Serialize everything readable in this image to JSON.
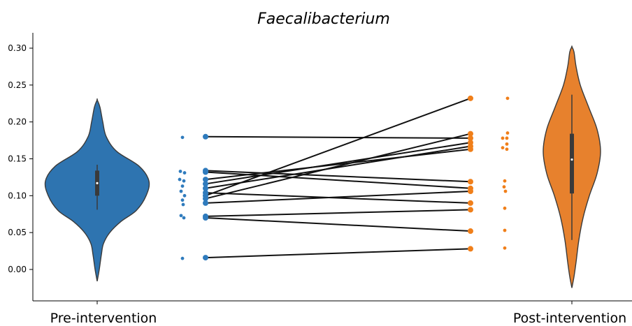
{
  "chart_data": {
    "type": "violin",
    "title": "Faecalibacterium",
    "xlabel": "",
    "ylabel": "",
    "categories": [
      "Pre-intervention",
      "Post-intervention"
    ],
    "ylim": [
      -0.04,
      0.32
    ],
    "yticks": [
      "0.00",
      "0.05",
      "0.10",
      "0.15",
      "0.20",
      "0.25",
      "0.30"
    ],
    "grid": false,
    "colors": {
      "pre": "#2e74b0",
      "post": "#e7812d",
      "pre_dots": "#2f7bbd",
      "post_dots": "#f07f1a",
      "lines": "#111111"
    },
    "violins": [
      {
        "name": "Pre-intervention",
        "min": -0.016,
        "max": 0.23,
        "q1": 0.1,
        "median": 0.117,
        "q3": 0.134,
        "whisker_low": 0.081,
        "whisker_high": 0.142
      },
      {
        "name": "Post-intervention",
        "min": -0.025,
        "max": 0.302,
        "q1": 0.103,
        "median": 0.149,
        "q3": 0.184,
        "whisker_low": 0.04,
        "whisker_high": 0.237
      }
    ],
    "paired_values": [
      {
        "pre": 0.18,
        "post": 0.178
      },
      {
        "pre": 0.134,
        "post": 0.119
      },
      {
        "pre": 0.132,
        "post": 0.11
      },
      {
        "pre": 0.122,
        "post": 0.163
      },
      {
        "pre": 0.116,
        "post": 0.172
      },
      {
        "pre": 0.11,
        "post": 0.167
      },
      {
        "pre": 0.104,
        "post": 0.09
      },
      {
        "pre": 0.1,
        "post": 0.232
      },
      {
        "pre": 0.096,
        "post": 0.184
      },
      {
        "pre": 0.09,
        "post": 0.106
      },
      {
        "pre": 0.072,
        "post": 0.081
      },
      {
        "pre": 0.07,
        "post": 0.052
      },
      {
        "pre": 0.016,
        "post": 0.028
      }
    ],
    "strip_pre": [
      0.179,
      0.133,
      0.131,
      0.122,
      0.12,
      0.113,
      0.106,
      0.1,
      0.094,
      0.088,
      0.073,
      0.07,
      0.015
    ],
    "strip_post": [
      0.232,
      0.185,
      0.178,
      0.178,
      0.17,
      0.165,
      0.163,
      0.12,
      0.112,
      0.106,
      0.083,
      0.053,
      0.029
    ]
  }
}
